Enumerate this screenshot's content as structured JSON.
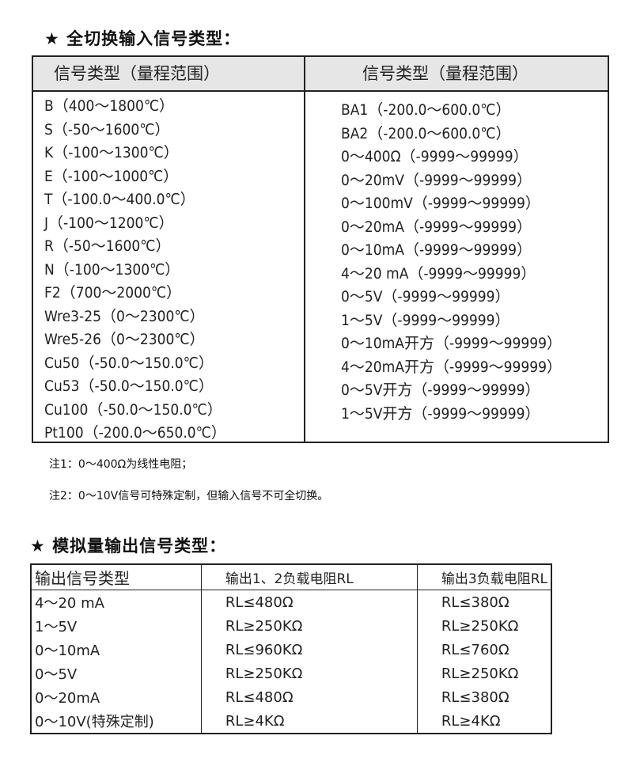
{
  "section1": {
    "title": "★ 全切换输入信号类型：",
    "headers": [
      "信号类型（量程范围）",
      "信号类型（量程范围）"
    ],
    "left": [
      "B（400～1800℃）",
      "S（-50～1600℃）",
      "K（-100～1300℃）",
      "E（-100～1000℃）",
      "T（-100.0～400.0℃）",
      "J（-100～1200℃）",
      "R（-50～1600℃）",
      "N（-100～1300℃）",
      "F2（700～2000℃）",
      "Wre3-25（0～2300℃）",
      "Wre5-26（0～2300℃）",
      "Cu50（-50.0～150.0℃）",
      "Cu53（-50.0～150.0℃）",
      "Cu100（-50.0～150.0℃）",
      "Pt100（-200.0～650.0℃）"
    ],
    "right": [
      "BA1（-200.0～600.0℃）",
      "BA2（-200.0～600.0℃）",
      "0～400Ω（-9999～99999）",
      "0～20mV（-9999～99999）",
      "0～100mV（-9999～99999）",
      "0～20mA（-9999～99999）",
      "0～10mA（-9999～99999）",
      "4～20 mA（-9999～99999）",
      "0～5V（-9999～99999）",
      "1～5V（-9999～99999）",
      "0～10mA开方（-9999～99999）",
      "4～20mA开方（-9999～99999）",
      "0～5V开方（-9999～99999）",
      "1～5V开方（-9999～99999）"
    ]
  },
  "notes": [
    "注1：0～400Ω为线性电阻；",
    "注2：0～10V信号可特殊定制，但输入信号不可全切换。"
  ],
  "section2": {
    "title": "★ 模拟量输出信号类型：",
    "headers": [
      "输出信号类型",
      "输出1、2负载电阻RL",
      "输出3负载电阻RL"
    ],
    "rows": [
      [
        "4～20 mA",
        "RL≤480Ω",
        "RL≤380Ω"
      ],
      [
        "1～5V",
        "RL≥250KΩ",
        "RL≥250KΩ"
      ],
      [
        "0～10mA",
        "RL≤960KΩ",
        "RL≤760Ω"
      ],
      [
        "0～5V",
        "RL≥250KΩ",
        "RL≥250KΩ"
      ],
      [
        "0～20mA",
        "RL≤480Ω",
        "RL≤380Ω"
      ],
      [
        "0～10V(特殊定制)",
        "RL≥4KΩ",
        "RL≥4KΩ"
      ]
    ]
  }
}
